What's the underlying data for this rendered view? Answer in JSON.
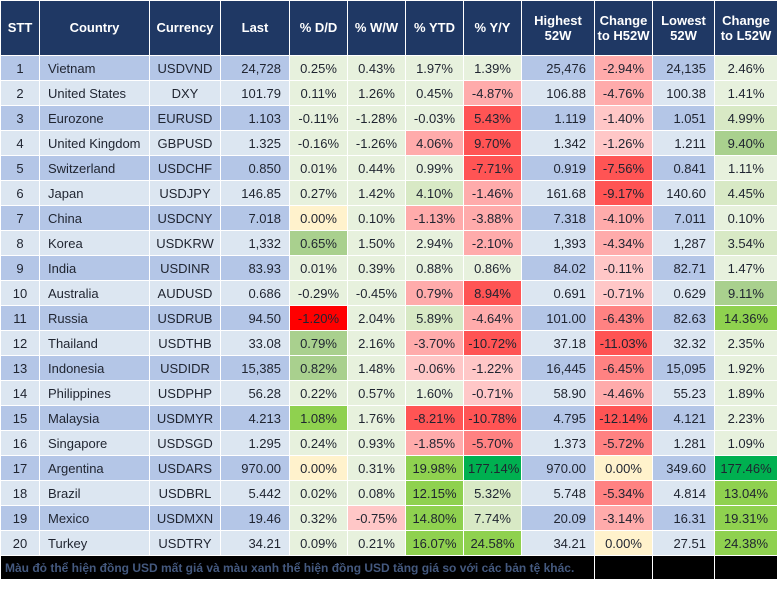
{
  "table": {
    "columns": [
      {
        "key": "stt",
        "label": "STT"
      },
      {
        "key": "country",
        "label": "Country"
      },
      {
        "key": "currency",
        "label": "Currency"
      },
      {
        "key": "last",
        "label": "Last"
      },
      {
        "key": "dd",
        "label": "% D/D"
      },
      {
        "key": "ww",
        "label": "% W/W"
      },
      {
        "key": "ytd",
        "label": "% YTD"
      },
      {
        "key": "yy",
        "label": "% Y/Y"
      },
      {
        "key": "high52w",
        "label": "Highest 52W"
      },
      {
        "key": "chg_h52w",
        "label": "Change to H52W"
      },
      {
        "key": "low52w",
        "label": "Lowest 52W"
      },
      {
        "key": "chg_l52w",
        "label": "Change to L52W"
      }
    ],
    "rows": [
      {
        "stt": "1",
        "country": "Vietnam",
        "currency": "USDVND",
        "last": "24,728",
        "dd": {
          "v": "0.25%",
          "c": "g1"
        },
        "ww": {
          "v": "0.43%",
          "c": "g1"
        },
        "ytd": {
          "v": "1.97%",
          "c": "g1"
        },
        "yy": {
          "v": "1.39%",
          "c": "g1"
        },
        "high52w": "25,476",
        "chg_h52w": {
          "v": "-2.94%",
          "c": "p2"
        },
        "low52w": "24,135",
        "chg_l52w": {
          "v": "2.46%",
          "c": "g1"
        }
      },
      {
        "stt": "2",
        "country": "United States",
        "currency": "DXY",
        "last": "101.79",
        "dd": {
          "v": "0.11%",
          "c": "g1"
        },
        "ww": {
          "v": "1.26%",
          "c": "g1"
        },
        "ytd": {
          "v": "0.45%",
          "c": "g1"
        },
        "yy": {
          "v": "-4.87%",
          "c": "p2"
        },
        "high52w": "106.88",
        "chg_h52w": {
          "v": "-4.76%",
          "c": "p2"
        },
        "low52w": "100.38",
        "chg_l52w": {
          "v": "1.41%",
          "c": "g1"
        }
      },
      {
        "stt": "3",
        "country": "Eurozone",
        "currency": "EURUSD",
        "last": "1.103",
        "dd": {
          "v": "-0.11%",
          "c": "g1"
        },
        "ww": {
          "v": "-1.28%",
          "c": "g1"
        },
        "ytd": {
          "v": "-0.03%",
          "c": "g1"
        },
        "yy": {
          "v": "5.43%",
          "c": "p4"
        },
        "high52w": "1.119",
        "chg_h52w": {
          "v": "-1.40%",
          "c": "p1"
        },
        "low52w": "1.051",
        "chg_l52w": {
          "v": "4.99%",
          "c": "g2"
        }
      },
      {
        "stt": "4",
        "country": "United Kingdom",
        "currency": "GBPUSD",
        "last": "1.325",
        "dd": {
          "v": "-0.16%",
          "c": "g1"
        },
        "ww": {
          "v": "-1.26%",
          "c": "g1"
        },
        "ytd": {
          "v": "4.06%",
          "c": "p2"
        },
        "yy": {
          "v": "9.70%",
          "c": "p4"
        },
        "high52w": "1.342",
        "chg_h52w": {
          "v": "-1.26%",
          "c": "p1"
        },
        "low52w": "1.211",
        "chg_l52w": {
          "v": "9.40%",
          "c": "g3"
        }
      },
      {
        "stt": "5",
        "country": "Switzerland",
        "currency": "USDCHF",
        "last": "0.850",
        "dd": {
          "v": "0.01%",
          "c": "g1"
        },
        "ww": {
          "v": "0.44%",
          "c": "g1"
        },
        "ytd": {
          "v": "0.99%",
          "c": "g1"
        },
        "yy": {
          "v": "-7.71%",
          "c": "p4"
        },
        "high52w": "0.919",
        "chg_h52w": {
          "v": "-7.56%",
          "c": "p4"
        },
        "low52w": "0.841",
        "chg_l52w": {
          "v": "1.11%",
          "c": "g1"
        }
      },
      {
        "stt": "6",
        "country": "Japan",
        "currency": "USDJPY",
        "last": "146.85",
        "dd": {
          "v": "0.27%",
          "c": "g1"
        },
        "ww": {
          "v": "1.42%",
          "c": "g1"
        },
        "ytd": {
          "v": "4.10%",
          "c": "g2"
        },
        "yy": {
          "v": "-1.46%",
          "c": "p2"
        },
        "high52w": "161.68",
        "chg_h52w": {
          "v": "-9.17%",
          "c": "p4"
        },
        "low52w": "140.60",
        "chg_l52w": {
          "v": "4.45%",
          "c": "g2"
        }
      },
      {
        "stt": "7",
        "country": "China",
        "currency": "USDCNY",
        "last": "7.018",
        "dd": {
          "v": "0.00%",
          "c": "n0"
        },
        "ww": {
          "v": "0.10%",
          "c": "g1"
        },
        "ytd": {
          "v": "-1.13%",
          "c": "p2"
        },
        "yy": {
          "v": "-3.88%",
          "c": "p2"
        },
        "high52w": "7.318",
        "chg_h52w": {
          "v": "-4.10%",
          "c": "p2"
        },
        "low52w": "7.011",
        "chg_l52w": {
          "v": "0.10%",
          "c": "g1"
        }
      },
      {
        "stt": "8",
        "country": "Korea",
        "currency": "USDKRW",
        "last": "1,332",
        "dd": {
          "v": "0.65%",
          "c": "g3"
        },
        "ww": {
          "v": "1.50%",
          "c": "g1"
        },
        "ytd": {
          "v": "2.94%",
          "c": "g1"
        },
        "yy": {
          "v": "-2.10%",
          "c": "p2"
        },
        "high52w": "1,393",
        "chg_h52w": {
          "v": "-4.34%",
          "c": "p2"
        },
        "low52w": "1,287",
        "chg_l52w": {
          "v": "3.54%",
          "c": "g2"
        }
      },
      {
        "stt": "9",
        "country": "India",
        "currency": "USDINR",
        "last": "83.93",
        "dd": {
          "v": "0.01%",
          "c": "g1"
        },
        "ww": {
          "v": "0.39%",
          "c": "g1"
        },
        "ytd": {
          "v": "0.88%",
          "c": "g1"
        },
        "yy": {
          "v": "0.86%",
          "c": "g1"
        },
        "high52w": "84.02",
        "chg_h52w": {
          "v": "-0.11%",
          "c": "p1"
        },
        "low52w": "82.71",
        "chg_l52w": {
          "v": "1.47%",
          "c": "g1"
        }
      },
      {
        "stt": "10",
        "country": "Australia",
        "currency": "AUDUSD",
        "last": "0.686",
        "dd": {
          "v": "-0.29%",
          "c": "g1"
        },
        "ww": {
          "v": "-0.45%",
          "c": "g1"
        },
        "ytd": {
          "v": "0.79%",
          "c": "p2"
        },
        "yy": {
          "v": "8.94%",
          "c": "p4"
        },
        "high52w": "0.691",
        "chg_h52w": {
          "v": "-0.71%",
          "c": "p1"
        },
        "low52w": "0.629",
        "chg_l52w": {
          "v": "9.11%",
          "c": "g3"
        }
      },
      {
        "stt": "11",
        "country": "Russia",
        "currency": "USDRUB",
        "last": "94.50",
        "dd": {
          "v": "-1.20%",
          "c": "p5"
        },
        "ww": {
          "v": "2.04%",
          "c": "g1"
        },
        "ytd": {
          "v": "5.89%",
          "c": "g2"
        },
        "yy": {
          "v": "-4.64%",
          "c": "p2"
        },
        "high52w": "101.00",
        "chg_h52w": {
          "v": "-6.43%",
          "c": "p3"
        },
        "low52w": "82.63",
        "chg_l52w": {
          "v": "14.36%",
          "c": "g4"
        }
      },
      {
        "stt": "12",
        "country": "Thailand",
        "currency": "USDTHB",
        "last": "33.08",
        "dd": {
          "v": "0.79%",
          "c": "g3"
        },
        "ww": {
          "v": "2.16%",
          "c": "g1"
        },
        "ytd": {
          "v": "-3.70%",
          "c": "p2"
        },
        "yy": {
          "v": "-10.72%",
          "c": "p4"
        },
        "high52w": "37.18",
        "chg_h52w": {
          "v": "-11.03%",
          "c": "p4"
        },
        "low52w": "32.32",
        "chg_l52w": {
          "v": "2.35%",
          "c": "g1"
        }
      },
      {
        "stt": "13",
        "country": "Indonesia",
        "currency": "USDIDR",
        "last": "15,385",
        "dd": {
          "v": "0.82%",
          "c": "g3"
        },
        "ww": {
          "v": "1.48%",
          "c": "g1"
        },
        "ytd": {
          "v": "-0.06%",
          "c": "p1"
        },
        "yy": {
          "v": "-1.22%",
          "c": "p1"
        },
        "high52w": "16,445",
        "chg_h52w": {
          "v": "-6.45%",
          "c": "p3"
        },
        "low52w": "15,095",
        "chg_l52w": {
          "v": "1.92%",
          "c": "g1"
        }
      },
      {
        "stt": "14",
        "country": "Philippines",
        "currency": "USDPHP",
        "last": "56.28",
        "dd": {
          "v": "0.22%",
          "c": "g1"
        },
        "ww": {
          "v": "0.57%",
          "c": "g1"
        },
        "ytd": {
          "v": "1.60%",
          "c": "g1"
        },
        "yy": {
          "v": "-0.71%",
          "c": "p1"
        },
        "high52w": "58.90",
        "chg_h52w": {
          "v": "-4.46%",
          "c": "p2"
        },
        "low52w": "55.23",
        "chg_l52w": {
          "v": "1.89%",
          "c": "g1"
        }
      },
      {
        "stt": "15",
        "country": "Malaysia",
        "currency": "USDMYR",
        "last": "4.213",
        "dd": {
          "v": "1.08%",
          "c": "g4"
        },
        "ww": {
          "v": "1.76%",
          "c": "g1"
        },
        "ytd": {
          "v": "-8.21%",
          "c": "p4"
        },
        "yy": {
          "v": "-10.78%",
          "c": "p4"
        },
        "high52w": "4.795",
        "chg_h52w": {
          "v": "-12.14%",
          "c": "p4"
        },
        "low52w": "4.121",
        "chg_l52w": {
          "v": "2.23%",
          "c": "g1"
        }
      },
      {
        "stt": "16",
        "country": "Singapore",
        "currency": "USDSGD",
        "last": "1.295",
        "dd": {
          "v": "0.24%",
          "c": "g1"
        },
        "ww": {
          "v": "0.93%",
          "c": "g1"
        },
        "ytd": {
          "v": "-1.85%",
          "c": "p2"
        },
        "yy": {
          "v": "-5.70%",
          "c": "p3"
        },
        "high52w": "1.373",
        "chg_h52w": {
          "v": "-5.72%",
          "c": "p3"
        },
        "low52w": "1.281",
        "chg_l52w": {
          "v": "1.09%",
          "c": "g1"
        }
      },
      {
        "stt": "17",
        "country": "Argentina",
        "currency": "USDARS",
        "last": "970.00",
        "dd": {
          "v": "0.00%",
          "c": "n0"
        },
        "ww": {
          "v": "0.31%",
          "c": "g1"
        },
        "ytd": {
          "v": "19.98%",
          "c": "g4"
        },
        "yy": {
          "v": "177.14%",
          "c": "g5"
        },
        "high52w": "970.00",
        "chg_h52w": {
          "v": "0.00%",
          "c": "n0"
        },
        "low52w": "349.60",
        "chg_l52w": {
          "v": "177.46%",
          "c": "g5"
        }
      },
      {
        "stt": "18",
        "country": "Brazil",
        "currency": "USDBRL",
        "last": "5.442",
        "dd": {
          "v": "0.02%",
          "c": "g1"
        },
        "ww": {
          "v": "0.08%",
          "c": "g1"
        },
        "ytd": {
          "v": "12.15%",
          "c": "g4"
        },
        "yy": {
          "v": "5.32%",
          "c": "g2"
        },
        "high52w": "5.748",
        "chg_h52w": {
          "v": "-5.34%",
          "c": "p3"
        },
        "low52w": "4.814",
        "chg_l52w": {
          "v": "13.04%",
          "c": "g4"
        }
      },
      {
        "stt": "19",
        "country": "Mexico",
        "currency": "USDMXN",
        "last": "19.46",
        "dd": {
          "v": "0.32%",
          "c": "g1"
        },
        "ww": {
          "v": "-0.75%",
          "c": "p1"
        },
        "ytd": {
          "v": "14.80%",
          "c": "g4"
        },
        "yy": {
          "v": "7.74%",
          "c": "g2"
        },
        "high52w": "20.09",
        "chg_h52w": {
          "v": "-3.14%",
          "c": "p2"
        },
        "low52w": "16.31",
        "chg_l52w": {
          "v": "19.31%",
          "c": "g4"
        }
      },
      {
        "stt": "20",
        "country": "Turkey",
        "currency": "USDTRY",
        "last": "34.21",
        "dd": {
          "v": "0.09%",
          "c": "g1"
        },
        "ww": {
          "v": "0.21%",
          "c": "g1"
        },
        "ytd": {
          "v": "16.07%",
          "c": "g4"
        },
        "yy": {
          "v": "24.58%",
          "c": "g4"
        },
        "high52w": "34.21",
        "chg_h52w": {
          "v": "0.00%",
          "c": "n0"
        },
        "low52w": "27.51",
        "chg_l52w": {
          "v": "24.38%",
          "c": "g4"
        }
      }
    ]
  },
  "palette": {
    "g1": "#E7F1DD",
    "g2": "#D8E9C5",
    "g3": "#A9D08E",
    "g4": "#8FD14F",
    "g5": "#00B050",
    "n0": "#FFF2CC",
    "p1": "#FFC7C7",
    "p2": "#FFABAB",
    "p3": "#FF8282",
    "p4": "#FF5454",
    "p5": "#FF0000"
  },
  "colors": {
    "header_bg": "#1F3864",
    "header_text": "#FFFFFF",
    "row_odd": "#B4C6E7",
    "row_even": "#DCE6F1",
    "grid": "#FFFFFF",
    "footer_bg": "#000000",
    "footer_text": "#44597F",
    "body_text": "#1F2430"
  },
  "footer": {
    "note": "Màu đỏ thể hiện đồng USD mất giá và màu xanh thể hiện đồng USD tăng giá so với các bản tệ khác."
  }
}
